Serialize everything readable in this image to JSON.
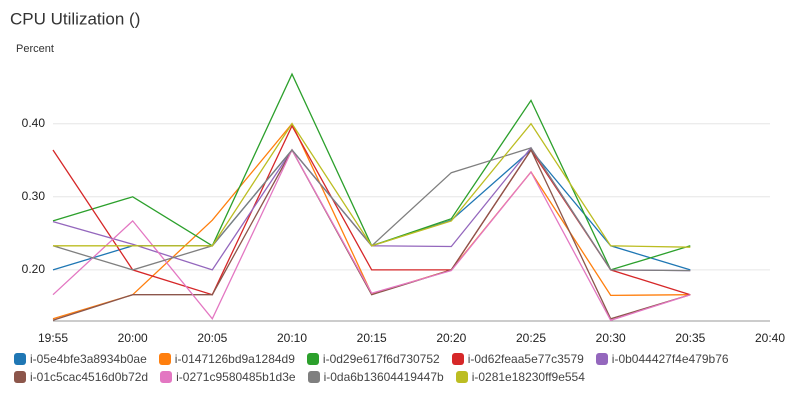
{
  "chart_data": {
    "type": "line",
    "title": "CPU Utilization ()",
    "y_label": "Percent",
    "categories": [
      "19:55",
      "20:00",
      "20:05",
      "20:10",
      "20:15",
      "20:20",
      "20:25",
      "20:30",
      "20:35",
      "20:40"
    ],
    "ylim": [
      0.13,
      0.49
    ],
    "yticks": [
      {
        "value": 0.2,
        "label": "0.20"
      },
      {
        "value": 0.3,
        "label": "0.30"
      },
      {
        "value": 0.4,
        "label": "0.40"
      }
    ],
    "grid": true,
    "series": [
      {
        "name": "i-05e4bfe3a8934b0ae",
        "color": "#1f77b4",
        "values": [
          0.2,
          0.233,
          0.233,
          0.364,
          0.233,
          0.268,
          0.364,
          0.233,
          0.2,
          null
        ]
      },
      {
        "name": "i-0147126bd9a1284d9",
        "color": "#ff7f0e",
        "values": [
          0.133,
          0.166,
          0.268,
          0.4,
          0.167,
          0.2,
          0.334,
          0.165,
          0.166,
          null
        ]
      },
      {
        "name": "i-0d29e617f6d730752",
        "color": "#2ca02c",
        "values": [
          0.267,
          0.3,
          0.233,
          0.468,
          0.233,
          0.27,
          0.432,
          0.2,
          0.233,
          null
        ]
      },
      {
        "name": "i-0d62feaa5e77c3579",
        "color": "#d62728",
        "values": [
          0.364,
          0.2,
          0.166,
          0.397,
          0.2,
          0.2,
          0.364,
          0.2,
          0.166,
          null
        ]
      },
      {
        "name": "i-0b044427f4e479b76",
        "color": "#9467bd",
        "values": [
          0.266,
          0.235,
          0.2,
          0.364,
          0.233,
          0.232,
          0.367,
          0.2,
          0.199,
          null
        ]
      },
      {
        "name": "i-01c5cac4516d0b72d",
        "color": "#8c564b",
        "values": [
          0.131,
          0.166,
          0.166,
          0.364,
          0.166,
          0.2,
          0.364,
          0.133,
          0.166,
          null
        ]
      },
      {
        "name": "i-0271c9580485b1d3e",
        "color": "#e377c2",
        "values": [
          0.166,
          0.267,
          0.133,
          0.364,
          0.168,
          0.199,
          0.334,
          0.131,
          0.166,
          null
        ]
      },
      {
        "name": "i-0da6b13604419447b",
        "color": "#7f7f7f",
        "values": [
          0.233,
          0.2,
          0.233,
          0.364,
          0.233,
          0.333,
          0.367,
          0.2,
          0.199,
          null
        ]
      },
      {
        "name": "i-0281e18230ff9e554",
        "color": "#bcbd22",
        "values": [
          0.233,
          0.233,
          0.233,
          0.4,
          0.233,
          0.267,
          0.4,
          0.233,
          0.231,
          null
        ]
      }
    ]
  }
}
